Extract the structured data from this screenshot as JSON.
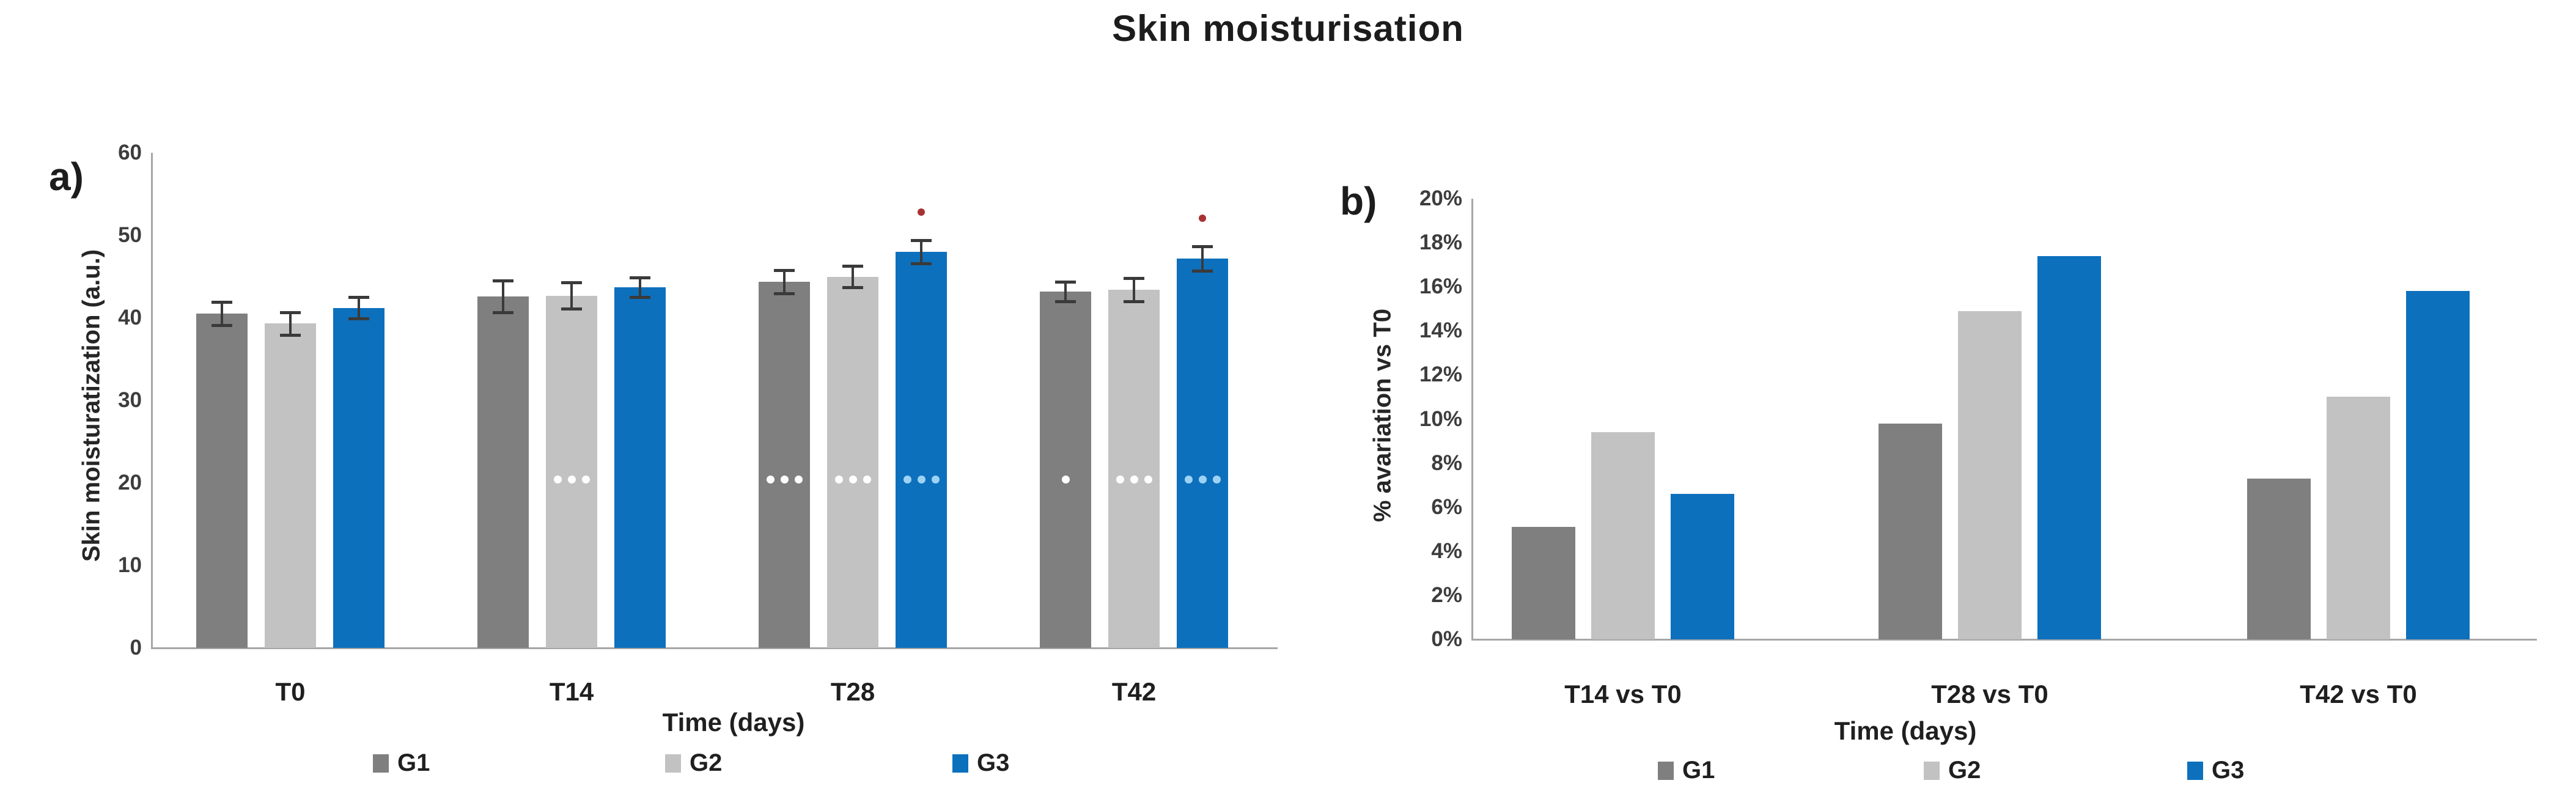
{
  "figure": {
    "title": "Skin moisturisation",
    "significance_color": "#a83232"
  },
  "chart_data": [
    {
      "panel_label": "a)",
      "type": "bar",
      "title": "",
      "ylabel": "Skin moisturatization (a.u.)",
      "xlabel": "Time (days)",
      "ylim": [
        0,
        60
      ],
      "grid": false,
      "legend_position": "bottom",
      "ytick_values": [
        0,
        10,
        20,
        30,
        40,
        50,
        60
      ],
      "ytick_labels": [
        "0",
        "10",
        "20",
        "30",
        "40",
        "50",
        "60"
      ],
      "categories": [
        "T0",
        "T14",
        "T28",
        "T42"
      ],
      "series": [
        {
          "name": "G1",
          "color": "#7f7f7f",
          "values": [
            40.5,
            42.6,
            44.4,
            43.2
          ],
          "errors": [
            1.4,
            1.9,
            1.4,
            1.2
          ],
          "in_bar_significance": [
            "",
            "",
            "***",
            "*"
          ],
          "marker_color": "#ffffff"
        },
        {
          "name": "G2",
          "color": "#c2c2c2",
          "values": [
            39.3,
            42.7,
            45.0,
            43.4
          ],
          "errors": [
            1.4,
            1.6,
            1.3,
            1.4
          ],
          "in_bar_significance": [
            "",
            "***",
            "***",
            "***"
          ],
          "marker_color": "#ffffff"
        },
        {
          "name": "G3",
          "color": "#0d70bd",
          "values": [
            41.2,
            43.7,
            48.0,
            47.2
          ],
          "errors": [
            1.3,
            1.2,
            1.4,
            1.5
          ],
          "in_bar_significance": [
            "",
            "",
            "***",
            "***"
          ],
          "above_bar_significance": [
            "",
            "",
            "*",
            "*"
          ],
          "marker_color": "#9ed2f5"
        }
      ]
    },
    {
      "panel_label": "b)",
      "type": "bar",
      "title": "",
      "ylabel": "% avariation vs T0",
      "xlabel": "Time (days)",
      "ylim": [
        0,
        20
      ],
      "value_unit": "%",
      "grid": false,
      "legend_position": "bottom",
      "ytick_values": [
        0,
        2,
        4,
        6,
        8,
        10,
        12,
        14,
        16,
        18,
        20
      ],
      "ytick_labels": [
        "0%",
        "2%",
        "4%",
        "6%",
        "8%",
        "10%",
        "12%",
        "14%",
        "16%",
        "18%",
        "20%"
      ],
      "categories": [
        "T14 vs T0",
        "T28 vs T0",
        "T42 vs T0"
      ],
      "series": [
        {
          "name": "G1",
          "color": "#7f7f7f",
          "values": [
            5.1,
            9.8,
            7.3
          ]
        },
        {
          "name": "G2",
          "color": "#c2c2c2",
          "values": [
            9.4,
            14.9,
            11.0
          ]
        },
        {
          "name": "G3",
          "color": "#0d70bd",
          "values": [
            6.6,
            17.4,
            15.8
          ]
        }
      ]
    }
  ]
}
